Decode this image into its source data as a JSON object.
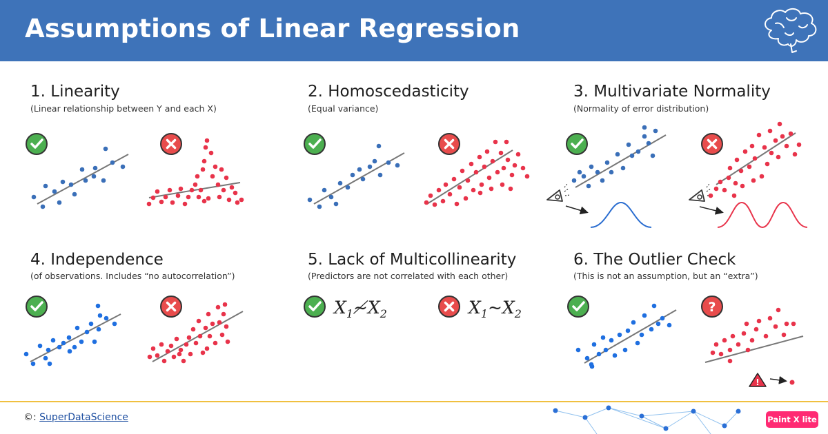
{
  "header": {
    "title": "Assumptions of Linear Regression",
    "bg_color": "#3e73b9",
    "icon": "brain-icon"
  },
  "sections": [
    {
      "title": "1. Linearity",
      "subtitle": "(Linear relationship between Y and each X)"
    },
    {
      "title": "2. Homoscedasticity",
      "subtitle": "(Equal variance)"
    },
    {
      "title": "3. Multivariate Normality",
      "subtitle": "(Normality of error distribution)"
    },
    {
      "title": "4. Independence",
      "subtitle": "(of observations. Includes “no autocorrelation”)"
    },
    {
      "title": "5. Lack of Multicollinearity",
      "subtitle": "(Predictors are not correlated with each other)"
    },
    {
      "title": "6. The Outlier Check",
      "subtitle": "(This is not an assumption, but an “extra”)"
    }
  ],
  "multicollinearity": {
    "good": {
      "a": "X",
      "a_sub": "1",
      "op": "≁",
      "b": "X",
      "b_sub": "2"
    },
    "bad": {
      "a": "X",
      "a_sub": "1",
      "op": "~",
      "b": "X",
      "b_sub": "2"
    }
  },
  "icons": {
    "good": "check-icon",
    "bad": "cross-icon",
    "unknown": "question-icon",
    "warning": "warning-icon",
    "eye": "eye-icon"
  },
  "colors": {
    "good_dots": "#3a6fb8",
    "bright_blue_dots": "#1f6fe0",
    "bad_dots": "#e8334a",
    "good_badge": "#4caf50",
    "bad_badge": "#e84c4c",
    "footer_line": "#f0c040"
  },
  "footer": {
    "copyright_symbol": "©:",
    "link": "SuperDataScience"
  },
  "watermark": "Paint X lite"
}
